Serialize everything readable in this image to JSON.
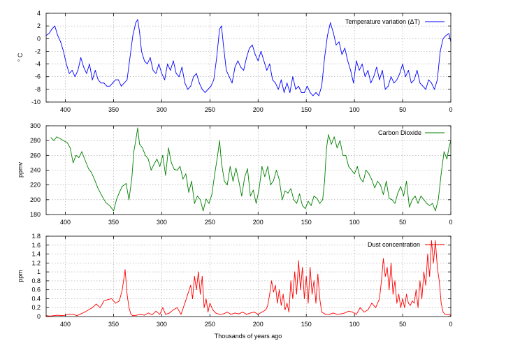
{
  "figure": {
    "x_common_label": "Thousands of years ago"
  },
  "chart_data": [
    {
      "type": "line",
      "title": "",
      "ylabel": "° C",
      "xlabel": "",
      "xlim": [
        420,
        0
      ],
      "ylim": [
        -10,
        4
      ],
      "xticks": [
        400,
        350,
        300,
        250,
        200,
        150,
        100,
        50,
        0
      ],
      "yticks": [
        -10,
        -8,
        -6,
        -4,
        -2,
        0,
        2,
        4
      ],
      "grid": true,
      "legend": "top-right",
      "series": [
        {
          "name": "Temperature variation (ΔT)",
          "color": "#0000ff",
          "x": [
            420,
            417,
            414,
            411,
            408,
            405,
            402,
            399,
            396,
            393,
            390,
            387,
            384,
            381,
            378,
            375,
            372,
            369,
            366,
            363,
            360,
            357,
            354,
            351,
            348,
            345,
            342,
            339,
            336,
            333,
            330,
            327,
            325,
            323,
            321,
            318,
            315,
            312,
            309,
            306,
            303,
            300,
            297,
            294,
            291,
            288,
            285,
            282,
            279,
            276,
            273,
            270,
            267,
            264,
            261,
            258,
            255,
            252,
            249,
            246,
            243,
            240,
            238,
            236,
            233,
            230,
            227,
            224,
            221,
            218,
            215,
            212,
            209,
            206,
            203,
            200,
            197,
            194,
            191,
            188,
            185,
            182,
            179,
            176,
            173,
            170,
            167,
            164,
            161,
            158,
            155,
            152,
            149,
            146,
            143,
            140,
            137,
            134,
            131,
            128,
            125,
            122,
            119,
            116,
            113,
            110,
            107,
            104,
            101,
            98,
            95,
            92,
            89,
            86,
            83,
            80,
            77,
            74,
            71,
            68,
            65,
            62,
            59,
            56,
            53,
            50,
            47,
            44,
            41,
            38,
            35,
            32,
            29,
            26,
            23,
            20,
            17,
            14,
            11,
            8,
            5,
            2,
            0
          ],
          "values": [
            0.5,
            0.8,
            1.5,
            2.0,
            0.5,
            -0.5,
            -2.0,
            -4.0,
            -5.5,
            -5.0,
            -6.0,
            -5.0,
            -3.0,
            -4.5,
            -5.5,
            -4.0,
            -6.5,
            -5.0,
            -6.5,
            -7.0,
            -7.0,
            -7.5,
            -7.5,
            -7.0,
            -6.5,
            -6.5,
            -7.5,
            -7.0,
            -6.5,
            -3.0,
            0.5,
            2.5,
            3.0,
            1.0,
            -2.0,
            -3.5,
            -4.0,
            -3.0,
            -5.0,
            -5.5,
            -4.0,
            -5.5,
            -6.5,
            -4.0,
            -5.0,
            -3.5,
            -5.5,
            -6.0,
            -4.5,
            -7.0,
            -8.0,
            -7.5,
            -6.0,
            -5.5,
            -7.0,
            -8.0,
            -8.5,
            -8.0,
            -7.5,
            -6.5,
            -3.0,
            1.5,
            2.0,
            -1.0,
            -5.0,
            -6.0,
            -7.0,
            -4.5,
            -3.5,
            -4.5,
            -5.0,
            -3.0,
            -1.5,
            -1.0,
            -2.5,
            -3.5,
            -2.0,
            -3.5,
            -5.0,
            -4.0,
            -6.5,
            -7.0,
            -8.0,
            -6.5,
            -8.5,
            -7.0,
            -8.5,
            -6.0,
            -8.0,
            -7.5,
            -8.5,
            -8.5,
            -7.5,
            -8.5,
            -9.0,
            -8.5,
            -9.0,
            -7.5,
            -3.0,
            0.5,
            2.5,
            1.0,
            -1.0,
            -0.5,
            -2.5,
            -1.5,
            -3.5,
            -5.0,
            -7.0,
            -3.5,
            -5.0,
            -4.0,
            -6.0,
            -5.0,
            -7.0,
            -6.0,
            -4.5,
            -6.5,
            -5.0,
            -8.0,
            -7.5,
            -6.0,
            -7.0,
            -6.5,
            -5.5,
            -4.0,
            -6.0,
            -5.0,
            -7.0,
            -6.5,
            -5.0,
            -7.0,
            -7.5,
            -8.0,
            -6.5,
            -7.0,
            -8.0,
            -6.5,
            -2.0,
            0.0,
            0.5,
            0.8,
            -0.5
          ]
        }
      ]
    },
    {
      "type": "line",
      "title": "",
      "ylabel": "ppmv",
      "xlabel": "",
      "xlim": [
        420,
        0
      ],
      "ylim": [
        180,
        300
      ],
      "xticks": [
        400,
        350,
        300,
        250,
        200,
        150,
        100,
        50,
        0
      ],
      "yticks": [
        180,
        200,
        220,
        240,
        260,
        280,
        300
      ],
      "grid": true,
      "legend": "top-right",
      "series": [
        {
          "name": "Carbon Dioxide",
          "color": "#008000",
          "x": [
            415,
            412,
            409,
            406,
            402,
            398,
            395,
            392,
            389,
            386,
            383,
            380,
            376,
            373,
            370,
            366,
            362,
            358,
            354,
            350,
            347,
            344,
            341,
            337,
            334,
            331,
            329,
            327,
            325,
            323,
            320,
            317,
            314,
            311,
            308,
            305,
            302,
            299,
            296,
            293,
            290,
            287,
            284,
            281,
            278,
            275,
            272,
            269,
            266,
            263,
            260,
            257,
            254,
            251,
            248,
            245,
            242,
            240,
            238,
            235,
            232,
            229,
            226,
            223,
            220,
            217,
            214,
            211,
            208,
            205,
            202,
            199,
            196,
            193,
            190,
            187,
            184,
            181,
            178,
            175,
            172,
            169,
            166,
            163,
            160,
            157,
            154,
            151,
            148,
            145,
            142,
            139,
            136,
            133,
            131,
            129,
            127,
            124,
            121,
            118,
            115,
            112,
            109,
            106,
            103,
            100,
            97,
            94,
            91,
            88,
            85,
            82,
            79,
            76,
            73,
            70,
            67,
            64,
            61,
            58,
            55,
            52,
            49,
            46,
            43,
            40,
            37,
            34,
            31,
            28,
            25,
            22,
            19,
            16,
            13,
            10,
            7,
            4,
            2,
            0
          ],
          "values": [
            284,
            280,
            285,
            283,
            280,
            277,
            270,
            250,
            260,
            257,
            265,
            255,
            242,
            237,
            228,
            215,
            205,
            196,
            192,
            185,
            200,
            210,
            218,
            222,
            200,
            230,
            265,
            280,
            297,
            275,
            270,
            260,
            255,
            240,
            248,
            255,
            245,
            260,
            233,
            270,
            250,
            241,
            240,
            245,
            228,
            235,
            210,
            225,
            195,
            205,
            200,
            185,
            201,
            195,
            207,
            235,
            260,
            280,
            250,
            225,
            220,
            245,
            225,
            243,
            225,
            205,
            230,
            242,
            205,
            213,
            195,
            214,
            245,
            231,
            245,
            220,
            226,
            240,
            227,
            200,
            212,
            209,
            215,
            200,
            195,
            208,
            192,
            188,
            198,
            192,
            205,
            202,
            195,
            200,
            225,
            270,
            288,
            275,
            285,
            270,
            280,
            260,
            260,
            245,
            240,
            235,
            245,
            229,
            224,
            240,
            235,
            227,
            216,
            225,
            220,
            207,
            225,
            202,
            200,
            195,
            209,
            218,
            205,
            225,
            190,
            200,
            205,
            195,
            205,
            200,
            195,
            192,
            195,
            185,
            200,
            235,
            265,
            255,
            270,
            280
          ]
        }
      ]
    },
    {
      "type": "line",
      "title": "",
      "ylabel": "ppm",
      "xlabel": "Thousands of years ago",
      "xlim": [
        420,
        0
      ],
      "ylim": [
        0,
        1.8
      ],
      "xticks": [
        400,
        350,
        300,
        250,
        200,
        150,
        100,
        50,
        0
      ],
      "yticks": [
        0,
        0.2,
        0.4,
        0.6,
        0.8,
        1.0,
        1.2,
        1.4,
        1.6,
        1.8
      ],
      "grid": true,
      "legend": "top-right",
      "series": [
        {
          "name": "Dust concentration",
          "color": "#ff0000",
          "x": [
            420,
            416,
            412,
            408,
            404,
            400,
            396,
            392,
            388,
            384,
            380,
            376,
            372,
            368,
            364,
            360,
            356,
            352,
            348,
            344,
            341,
            338,
            336,
            334,
            332,
            330,
            326,
            322,
            318,
            314,
            310,
            306,
            302,
            299,
            296,
            292,
            288,
            284,
            280,
            276,
            273,
            270,
            268,
            266,
            264,
            262,
            260,
            258,
            256,
            254,
            252,
            250,
            247,
            244,
            240,
            236,
            232,
            228,
            224,
            220,
            216,
            212,
            208,
            204,
            200,
            196,
            192,
            190,
            188,
            186,
            184,
            182,
            180,
            178,
            176,
            174,
            172,
            170,
            168,
            166,
            164,
            162,
            160,
            158,
            156,
            154,
            152,
            150,
            148,
            146,
            144,
            142,
            140,
            138,
            136,
            134,
            130,
            126,
            122,
            118,
            114,
            110,
            106,
            102,
            98,
            94,
            90,
            86,
            82,
            78,
            74,
            72,
            70,
            68,
            66,
            64,
            62,
            60,
            58,
            56,
            54,
            52,
            50,
            48,
            46,
            44,
            42,
            40,
            38,
            36,
            34,
            32,
            30,
            28,
            26,
            24,
            22,
            20,
            18,
            16,
            14,
            12,
            10,
            8,
            6,
            4,
            2,
            0
          ],
          "values": [
            0.02,
            0.01,
            0.02,
            0.03,
            0.02,
            0.03,
            0.05,
            0.05,
            0.02,
            0.06,
            0.1,
            0.15,
            0.2,
            0.28,
            0.2,
            0.35,
            0.38,
            0.4,
            0.3,
            0.35,
            0.6,
            1.05,
            0.5,
            0.2,
            0.05,
            0.02,
            0.03,
            0.05,
            0.03,
            0.08,
            0.04,
            0.12,
            0.05,
            0.2,
            0.05,
            0.08,
            0.15,
            0.2,
            0.05,
            0.3,
            0.5,
            0.7,
            0.4,
            0.9,
            0.6,
            1.0,
            0.5,
            0.9,
            0.2,
            0.4,
            0.1,
            0.3,
            0.15,
            0.08,
            0.05,
            0.06,
            0.1,
            0.05,
            0.08,
            0.06,
            0.1,
            0.05,
            0.08,
            0.1,
            0.05,
            0.1,
            0.15,
            0.25,
            0.5,
            0.8,
            0.55,
            0.7,
            0.3,
            0.6,
            0.25,
            0.5,
            0.15,
            0.3,
            0.1,
            0.8,
            0.4,
            1.0,
            0.5,
            1.25,
            0.6,
            1.1,
            0.4,
            0.9,
            0.3,
            1.1,
            0.5,
            0.8,
            0.3,
            0.95,
            0.4,
            0.1,
            0.05,
            0.05,
            0.08,
            0.05,
            0.06,
            0.08,
            0.12,
            0.1,
            0.05,
            0.2,
            0.1,
            0.15,
            0.3,
            0.2,
            0.4,
            0.8,
            1.3,
            0.9,
            1.1,
            0.6,
            1.2,
            0.5,
            0.8,
            0.3,
            0.5,
            0.2,
            0.4,
            0.2,
            0.5,
            0.3,
            0.25,
            0.35,
            0.3,
            0.6,
            0.2,
            0.8,
            0.4,
            1.0,
            0.7,
            1.4,
            0.9,
            1.7,
            1.2,
            1.7,
            1.1,
            0.8,
            0.3,
            0.1,
            0.05,
            0.04,
            0.05,
            0.02
          ]
        }
      ]
    }
  ]
}
